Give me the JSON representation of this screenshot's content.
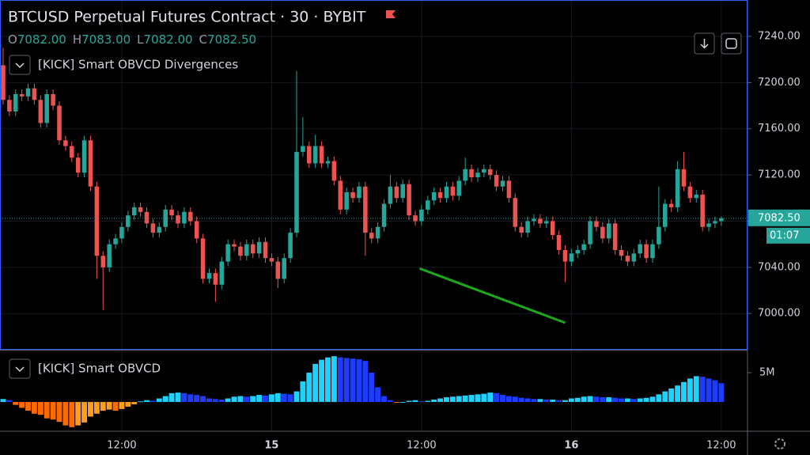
{
  "header": {
    "title": "BTCUSD Perpetual Futures Contract · 30 · BYBIT",
    "ohlc": [
      {
        "label": "O",
        "value": "7082.00"
      },
      {
        "label": "H",
        "value": "7083.00"
      },
      {
        "label": "L",
        "value": "7082.00"
      },
      {
        "label": "C",
        "value": "7082.50"
      }
    ]
  },
  "chart_data": [
    {
      "type": "candlestick",
      "title": "[KICK] Smart OBVCD Divergences",
      "x": [
        -19,
        -18,
        -17,
        -16,
        -15,
        -14,
        -13,
        -12,
        -11,
        -10,
        -9,
        -8,
        -7,
        -6,
        -5,
        -4,
        -3,
        -2,
        -1,
        0,
        1,
        2,
        3,
        4,
        5,
        6,
        7,
        8,
        9,
        10,
        11,
        12,
        13,
        14,
        15,
        16,
        17,
        18,
        19,
        20,
        21,
        22,
        23,
        24,
        25,
        26,
        27,
        28,
        29,
        30,
        31,
        32,
        33,
        34,
        35,
        36,
        37,
        38,
        39,
        40,
        41,
        42,
        43,
        44,
        45,
        46,
        47,
        48,
        49,
        50,
        51,
        52,
        53,
        54,
        55,
        56,
        57,
        58,
        59,
        60,
        61,
        62,
        63,
        64,
        65,
        66,
        67,
        68,
        69,
        70,
        71,
        72,
        73,
        74,
        75,
        76,
        77,
        78,
        79,
        80,
        81,
        82,
        83,
        84,
        85,
        86,
        87,
        88,
        89,
        90,
        91,
        92,
        93,
        94,
        95,
        96
      ],
      "open": [
        7215,
        7185,
        7175,
        7190,
        7188,
        7195,
        7185,
        7165,
        7190,
        7180,
        7150,
        7145,
        7135,
        7122,
        7150,
        7110,
        7050,
        7040,
        7060,
        7065,
        7075,
        7085,
        7092,
        7088,
        7078,
        7070,
        7075,
        7090,
        7085,
        7078,
        7088,
        7080,
        7065,
        7030,
        7035,
        7025,
        7045,
        7060,
        7058,
        7050,
        7060,
        7052,
        7062,
        7048,
        7045,
        7030,
        7048,
        7070,
        7140,
        7145,
        7130,
        7145,
        7130,
        7132,
        7115,
        7090,
        7105,
        7100,
        7110,
        7070,
        7065,
        7075,
        7095,
        7110,
        7100,
        7112,
        7085,
        7080,
        7090,
        7098,
        7105,
        7100,
        7110,
        7102,
        7115,
        7125,
        7118,
        7122,
        7125,
        7120,
        7110,
        7115,
        7100,
        7075,
        7070,
        7080,
        7082,
        7078,
        7080,
        7068,
        7055,
        7045,
        7052,
        7055,
        7060,
        7080,
        7075,
        7065,
        7078,
        7055,
        7050,
        7045,
        7052,
        7060,
        7048,
        7060,
        7075,
        7095,
        7092,
        7125,
        7110,
        7100,
        7103,
        7075,
        7078,
        7080
      ],
      "high": [
        7230,
        7189,
        7194,
        7194,
        7199,
        7199,
        7189,
        7194,
        7194,
        7184,
        7154,
        7149,
        7139,
        7154,
        7154,
        7114,
        7054,
        7064,
        7069,
        7079,
        7089,
        7096,
        7096,
        7092,
        7082,
        7079,
        7094,
        7094,
        7089,
        7092,
        7092,
        7084,
        7069,
        7039,
        7039,
        7049,
        7064,
        7064,
        7062,
        7064,
        7064,
        7066,
        7066,
        7052,
        7049,
        7052,
        7074,
        7210,
        7170,
        7149,
        7155,
        7149,
        7136,
        7136,
        7119,
        7109,
        7109,
        7114,
        7114,
        7074,
        7079,
        7099,
        7120,
        7114,
        7116,
        7116,
        7089,
        7094,
        7102,
        7109,
        7109,
        7114,
        7114,
        7119,
        7135,
        7129,
        7126,
        7129,
        7129,
        7124,
        7119,
        7119,
        7104,
        7079,
        7084,
        7086,
        7086,
        7084,
        7084,
        7072,
        7059,
        7056,
        7059,
        7064,
        7084,
        7084,
        7079,
        7082,
        7082,
        7059,
        7054,
        7056,
        7064,
        7064,
        7064,
        7110,
        7099,
        7099,
        7132,
        7140,
        7114,
        7107,
        7107,
        7082,
        7084,
        7084
      ],
      "low": [
        7181,
        7171,
        7171,
        7184,
        7184,
        7181,
        7161,
        7161,
        7176,
        7146,
        7141,
        7131,
        7118,
        7118,
        7106,
        7030,
        7003,
        7036,
        7056,
        7061,
        7071,
        7081,
        7084,
        7074,
        7066,
        7066,
        7071,
        7081,
        7074,
        7074,
        7076,
        7061,
        7026,
        7026,
        7010,
        7021,
        7041,
        7054,
        7046,
        7046,
        7048,
        7048,
        7044,
        7041,
        7022,
        7026,
        7044,
        7066,
        7136,
        7126,
        7126,
        7126,
        7126,
        7111,
        7086,
        7086,
        7096,
        7096,
        7050,
        7061,
        7061,
        7071,
        7091,
        7096,
        7096,
        7081,
        7076,
        7076,
        7086,
        7094,
        7096,
        7096,
        7098,
        7098,
        7111,
        7114,
        7114,
        7118,
        7116,
        7106,
        7106,
        7096,
        7071,
        7066,
        7066,
        7076,
        7074,
        7074,
        7064,
        7051,
        7027,
        7041,
        7048,
        7051,
        7056,
        7071,
        7061,
        7061,
        7051,
        7046,
        7041,
        7041,
        7048,
        7044,
        7044,
        7056,
        7071,
        7088,
        7088,
        7106,
        7096,
        7096,
        7071,
        7071,
        7074,
        7076
      ],
      "close": [
        7185,
        7175,
        7190,
        7188,
        7195,
        7185,
        7165,
        7190,
        7180,
        7150,
        7145,
        7135,
        7122,
        7150,
        7110,
        7050,
        7040,
        7060,
        7065,
        7075,
        7085,
        7092,
        7088,
        7078,
        7070,
        7075,
        7090,
        7085,
        7078,
        7088,
        7080,
        7065,
        7030,
        7035,
        7025,
        7045,
        7060,
        7058,
        7050,
        7060,
        7052,
        7062,
        7048,
        7045,
        7030,
        7048,
        7070,
        7140,
        7145,
        7130,
        7145,
        7130,
        7132,
        7115,
        7090,
        7105,
        7100,
        7110,
        7070,
        7065,
        7075,
        7095,
        7110,
        7100,
        7112,
        7085,
        7080,
        7090,
        7098,
        7105,
        7100,
        7110,
        7102,
        7115,
        7125,
        7118,
        7122,
        7125,
        7120,
        7110,
        7115,
        7100,
        7075,
        7070,
        7080,
        7082,
        7078,
        7080,
        7068,
        7055,
        7045,
        7052,
        7055,
        7060,
        7080,
        7075,
        7065,
        7078,
        7055,
        7050,
        7045,
        7052,
        7060,
        7048,
        7060,
        7075,
        7095,
        7092,
        7125,
        7110,
        7100,
        7103,
        7075,
        7078,
        7080,
        7082.5
      ],
      "up_color": "#26a69a",
      "down_color": "#ef5350",
      "xlim": [
        -19.5,
        100.2
      ],
      "ylim": [
        6970,
        7271.5
      ],
      "yticks": [
        {
          "value": 7000,
          "label": "7000.00"
        },
        {
          "value": 7040,
          "label": "7040.00"
        },
        {
          "value": 7080,
          "label": "7080.00"
        },
        {
          "value": 7120,
          "label": "7120.00"
        },
        {
          "value": 7160,
          "label": "7160.00"
        },
        {
          "value": 7200,
          "label": "7200.00"
        },
        {
          "value": 7240,
          "label": "7240.00"
        }
      ],
      "last_price": {
        "value": 7082.5,
        "label": "7082.50"
      },
      "countdown": "01:07",
      "lines": [
        {
          "x": [
            47.7,
            71
          ],
          "y": [
            7039,
            6992
          ],
          "color": "#1ea61e"
        }
      ],
      "grid": true
    },
    {
      "type": "histogram",
      "title": "[KICK] Smart OBVCD",
      "x": [
        -19,
        -18,
        -17,
        -16,
        -15,
        -14,
        -13,
        -12,
        -11,
        -10,
        -9,
        -8,
        -7,
        -6,
        -5,
        -4,
        -3,
        -2,
        -1,
        0,
        1,
        2,
        3,
        4,
        5,
        6,
        7,
        8,
        9,
        10,
        11,
        12,
        13,
        14,
        15,
        16,
        17,
        18,
        19,
        20,
        21,
        22,
        23,
        24,
        25,
        26,
        27,
        28,
        29,
        30,
        31,
        32,
        33,
        34,
        35,
        36,
        37,
        38,
        39,
        40,
        41,
        42,
        43,
        44,
        45,
        46,
        47,
        48,
        49,
        50,
        51,
        52,
        53,
        54,
        55,
        56,
        57,
        58,
        59,
        60,
        61,
        62,
        63,
        64,
        65,
        66,
        67,
        68,
        69,
        70,
        71,
        72,
        73,
        74,
        75,
        76,
        77,
        78,
        79,
        80,
        81,
        82,
        83,
        84,
        85,
        86,
        87,
        88,
        89,
        90,
        91,
        92,
        93,
        94,
        95,
        96
      ],
      "values": [
        0.5,
        0.3,
        -0.5,
        -1.0,
        -1.5,
        -2.0,
        -2.2,
        -2.8,
        -3.0,
        -3.4,
        -4.0,
        -4.3,
        -4.0,
        -3.5,
        -2.5,
        -2.0,
        -1.5,
        -1.3,
        -1.5,
        -1.2,
        -0.8,
        -0.4,
        0.1,
        0.3,
        0.2,
        0.6,
        1.0,
        1.5,
        1.6,
        1.5,
        1.3,
        1.2,
        1.0,
        0.6,
        0.5,
        0.4,
        0.6,
        0.9,
        1.0,
        0.9,
        1.0,
        1.2,
        1.1,
        1.3,
        1.5,
        1.4,
        1.3,
        1.8,
        3.5,
        5.0,
        6.5,
        7.2,
        7.6,
        7.8,
        7.6,
        7.5,
        7.4,
        7.3,
        7.0,
        5.0,
        2.5,
        1.0,
        0.3,
        -0.1,
        0.0,
        0.2,
        0.3,
        0.1,
        0.2,
        0.4,
        0.6,
        0.8,
        0.9,
        1.0,
        1.1,
        1.2,
        1.3,
        1.4,
        1.6,
        1.5,
        1.2,
        1.0,
        0.9,
        0.7,
        0.6,
        0.5,
        0.5,
        0.4,
        0.4,
        0.3,
        0.3,
        0.6,
        0.7,
        0.9,
        1.0,
        0.9,
        0.8,
        0.8,
        0.7,
        0.6,
        0.6,
        0.5,
        0.6,
        0.7,
        0.9,
        1.3,
        1.8,
        2.3,
        2.8,
        3.4,
        4.0,
        4.4,
        4.3,
        4.0,
        3.7,
        3.2
      ],
      "colors": {
        "positive_rising": "#1ed2ff",
        "positive_falling": "#1e3cff",
        "negative_falling": "#ff6a00",
        "negative_rising": "#ff9e1a"
      },
      "xlim": [
        -19.5,
        100.2
      ],
      "ylim": [
        -5,
        8.5
      ],
      "xticks": [
        {
          "value": 0,
          "label": "12:00"
        },
        {
          "value": 24,
          "label": "15"
        },
        {
          "value": 48,
          "label": "12:00"
        },
        {
          "value": 72,
          "label": "16"
        },
        {
          "value": 96,
          "label": "12:00"
        }
      ],
      "yticks": [
        {
          "value": 5,
          "label": "5M"
        }
      ]
    }
  ]
}
